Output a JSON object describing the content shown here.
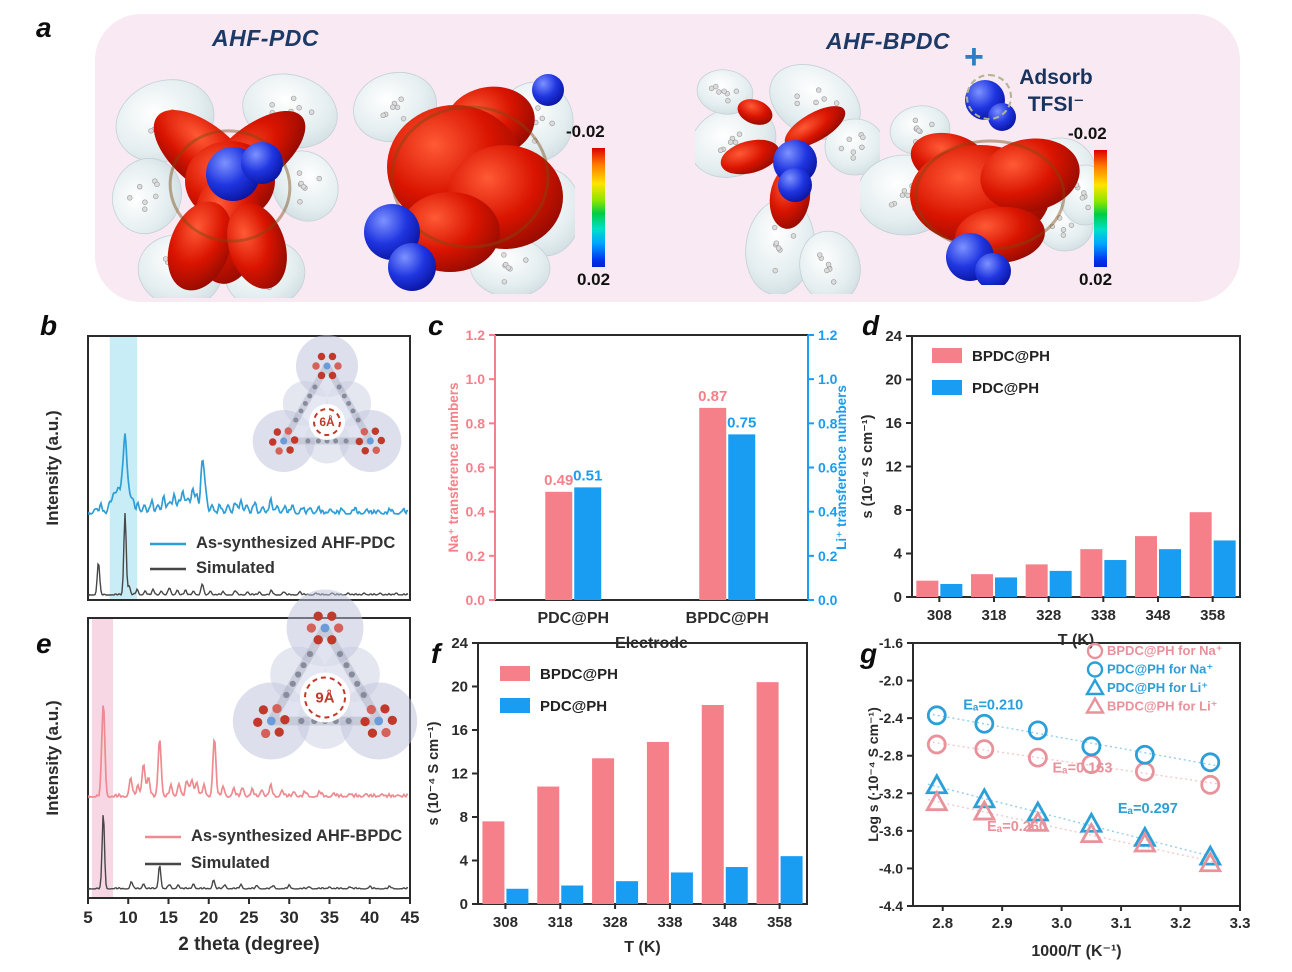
{
  "panel_a": {
    "label": "a",
    "left_title": "AHF-PDC",
    "right_title": "AHF-BPDC",
    "plus_sign": "+",
    "adsorb_word": "Adsorb",
    "tfsi_word": "TFSI⁻",
    "colorbar_top": "-0.02",
    "colorbar_bottom": "0.02"
  },
  "colors": {
    "bar_pink": "#f5808a",
    "bar_blue": "#189df2",
    "scatter_pink": "#e8929c",
    "scatter_blue": "#2b9fd8",
    "xrd_blue": "#2e9fd6",
    "xrd_pink": "#ee8a90",
    "xrd_dark": "#474747",
    "band_cyan": "#c9edf6",
    "band_pink": "#f6d7e3",
    "axis_dark": "#2b2b2b",
    "navy": "#17335e"
  },
  "chart_data": [
    {
      "id": "b",
      "panel_label": "b",
      "type": "line",
      "ylabel": "Intensity (a.u.)",
      "xlabel": "",
      "xlim": [
        5,
        45
      ],
      "band": {
        "range": [
          7.7,
          11.1
        ],
        "colorKey": "band_cyan"
      },
      "inset_label": "6Å",
      "series": [
        {
          "name": "As-synthesized AHF-PDC",
          "colorKey": "xrd_blue",
          "peaks": [
            [
              5.9,
              5
            ],
            [
              6.6,
              7
            ],
            [
              7.7,
              12
            ],
            [
              8.2,
              20
            ],
            [
              8.7,
              24
            ],
            [
              9.2,
              30
            ],
            [
              9.6,
              75
            ],
            [
              10.0,
              26
            ],
            [
              10.5,
              15
            ],
            [
              11.2,
              9
            ],
            [
              12.0,
              9
            ],
            [
              12.9,
              11
            ],
            [
              13.7,
              9
            ],
            [
              14.4,
              17
            ],
            [
              15.1,
              11
            ],
            [
              15.7,
              19
            ],
            [
              16.3,
              13
            ],
            [
              16.8,
              21
            ],
            [
              17.4,
              15
            ],
            [
              18.0,
              25
            ],
            [
              18.5,
              19
            ],
            [
              19.2,
              52
            ],
            [
              19.6,
              22
            ],
            [
              20.4,
              9
            ],
            [
              21.4,
              7
            ],
            [
              22.4,
              9
            ],
            [
              23.3,
              10
            ],
            [
              24.0,
              12
            ],
            [
              24.7,
              9
            ],
            [
              25.7,
              10
            ],
            [
              26.7,
              7
            ],
            [
              27.7,
              12
            ],
            [
              28.5,
              8
            ],
            [
              29.4,
              6
            ],
            [
              30.4,
              8
            ],
            [
              31.6,
              5
            ],
            [
              32.6,
              6
            ],
            [
              33.6,
              5
            ],
            [
              35.1,
              5
            ],
            [
              36.6,
              4
            ],
            [
              38.1,
              4
            ],
            [
              39.6,
              4
            ],
            [
              41.1,
              3
            ],
            [
              42.6,
              3
            ],
            [
              44.1,
              3
            ]
          ]
        },
        {
          "name": "Simulated",
          "colorKey": "xrd_dark",
          "peaks": [
            [
              6.3,
              33
            ],
            [
              9.6,
              82
            ],
            [
              10.1,
              9
            ],
            [
              11.1,
              5
            ],
            [
              12.1,
              4
            ],
            [
              13.1,
              5
            ],
            [
              14.1,
              4
            ],
            [
              15.1,
              7
            ],
            [
              16.1,
              5
            ],
            [
              17.1,
              4
            ],
            [
              18.1,
              4
            ],
            [
              19.2,
              11
            ],
            [
              20.2,
              4
            ],
            [
              21.8,
              3
            ],
            [
              23.3,
              4
            ],
            [
              24.8,
              3
            ],
            [
              26.3,
              3
            ],
            [
              27.8,
              4
            ],
            [
              29.3,
              3
            ],
            [
              31.3,
              3
            ],
            [
              33.3,
              2
            ],
            [
              35.3,
              2
            ],
            [
              37.3,
              2
            ],
            [
              39.3,
              2
            ],
            [
              41.3,
              2
            ],
            [
              43.3,
              2
            ]
          ]
        }
      ]
    },
    {
      "id": "c",
      "panel_label": "c",
      "type": "bar",
      "categories": [
        "PDC@PH",
        "BPDC@PH"
      ],
      "xlabel": "Electrode",
      "ylabel_left": "Na⁺ transference numbers",
      "ylabel_right": "Li⁺ transference numbers",
      "ylim": [
        0,
        1.2
      ],
      "ytick_step": 0.2,
      "series": [
        {
          "name": "Na⁺ transference",
          "colorKey": "bar_pink",
          "values": [
            0.49,
            0.87
          ]
        },
        {
          "name": "Li⁺ transference",
          "colorKey": "bar_blue",
          "values": [
            0.51,
            0.75
          ]
        }
      ]
    },
    {
      "id": "d",
      "panel_label": "d",
      "type": "bar",
      "categories": [
        "308",
        "318",
        "328",
        "338",
        "348",
        "358"
      ],
      "xlabel": "T (K)",
      "ylabel": "s (10⁻⁴ S cm⁻¹)",
      "ylim": [
        0,
        24
      ],
      "ytick_step": 4,
      "series": [
        {
          "name": "BPDC@PH",
          "colorKey": "bar_pink",
          "values": [
            1.5,
            2.1,
            3.0,
            4.4,
            5.6,
            7.8
          ]
        },
        {
          "name": "PDC@PH",
          "colorKey": "bar_blue",
          "values": [
            1.2,
            1.8,
            2.4,
            3.4,
            4.4,
            5.2
          ]
        }
      ]
    },
    {
      "id": "e",
      "panel_label": "e",
      "type": "line",
      "ylabel": "Intensity (a.u.)",
      "xlabel": "2 theta (degree)",
      "xlim": [
        5,
        45
      ],
      "xticks": [
        5,
        10,
        15,
        20,
        25,
        30,
        35,
        40,
        45
      ],
      "band": {
        "range": [
          5.5,
          8.1
        ],
        "colorKey": "band_pink"
      },
      "inset_label": "9Å",
      "series": [
        {
          "name": "As-synthesized AHF-BPDC",
          "colorKey": "xrd_pink",
          "peaks": [
            [
              6.9,
              93
            ],
            [
              10.3,
              18
            ],
            [
              11.2,
              10
            ],
            [
              11.9,
              33
            ],
            [
              12.5,
              18
            ],
            [
              13.9,
              58
            ],
            [
              15.3,
              10
            ],
            [
              16.3,
              13
            ],
            [
              17.3,
              15
            ],
            [
              17.9,
              17
            ],
            [
              18.5,
              14
            ],
            [
              19.4,
              10
            ],
            [
              20.7,
              58
            ],
            [
              21.8,
              9
            ],
            [
              23.1,
              7
            ],
            [
              24.2,
              9
            ],
            [
              25.4,
              6
            ],
            [
              26.6,
              7
            ],
            [
              27.7,
              10
            ],
            [
              29.1,
              6
            ],
            [
              30.6,
              5
            ],
            [
              32.0,
              4
            ],
            [
              33.8,
              4
            ],
            [
              35.5,
              3
            ],
            [
              37.5,
              3
            ],
            [
              39.5,
              3
            ],
            [
              41.5,
              3
            ],
            [
              43.5,
              2
            ]
          ]
        },
        {
          "name": "Simulated",
          "colorKey": "xrd_dark",
          "peaks": [
            [
              6.9,
              76
            ],
            [
              10.4,
              7
            ],
            [
              11.9,
              5
            ],
            [
              13.9,
              24
            ],
            [
              15.1,
              4
            ],
            [
              16.2,
              4
            ],
            [
              18.1,
              5
            ],
            [
              20.6,
              9
            ],
            [
              22.0,
              4
            ],
            [
              24.0,
              4
            ],
            [
              26.0,
              3
            ],
            [
              28.0,
              3
            ],
            [
              30.0,
              3
            ],
            [
              32.5,
              2
            ],
            [
              35.0,
              2
            ],
            [
              37.5,
              2
            ],
            [
              40.0,
              2
            ],
            [
              42.5,
              2
            ]
          ]
        }
      ]
    },
    {
      "id": "f",
      "panel_label": "f",
      "type": "bar",
      "categories": [
        "308",
        "318",
        "328",
        "338",
        "348",
        "358"
      ],
      "xlabel": "T (K)",
      "ylabel": "s (10⁻⁴ S cm⁻¹)",
      "ylim": [
        0,
        24
      ],
      "ytick_step": 4,
      "series": [
        {
          "name": "BPDC@PH",
          "colorKey": "bar_pink",
          "values": [
            7.6,
            10.8,
            13.4,
            14.9,
            18.3,
            20.4
          ]
        },
        {
          "name": "PDC@PH",
          "colorKey": "bar_blue",
          "values": [
            1.4,
            1.7,
            2.1,
            2.9,
            3.4,
            4.4
          ]
        }
      ]
    },
    {
      "id": "g",
      "panel_label": "g",
      "type": "scatter",
      "xlabel": "1000/T (K⁻¹)",
      "ylabel": "Log s (·10⁻⁴ S cm⁻¹)",
      "xlim": [
        2.75,
        3.3
      ],
      "ylim": [
        -4.4,
        -1.6
      ],
      "xticks": [
        2.8,
        2.9,
        3.0,
        3.1,
        3.2,
        3.3
      ],
      "ytick_step": 0.4,
      "x": [
        2.79,
        2.87,
        2.96,
        3.05,
        3.14,
        3.25
      ],
      "series": [
        {
          "name": "BPDC@PH for Na⁺",
          "marker": "circle",
          "colorKey": "scatter_pink",
          "values": [
            -2.68,
            -2.73,
            -2.82,
            -2.89,
            -2.97,
            -3.11
          ]
        },
        {
          "name": "PDC@PH for Na⁺",
          "marker": "circle",
          "colorKey": "scatter_blue",
          "values": [
            -2.37,
            -2.46,
            -2.53,
            -2.7,
            -2.79,
            -2.87
          ]
        },
        {
          "name": "PDC@PH for Li⁺",
          "marker": "triangle",
          "colorKey": "scatter_blue",
          "values": [
            -3.12,
            -3.27,
            -3.41,
            -3.53,
            -3.68,
            -3.88
          ]
        },
        {
          "name": "BPDC@PH for Li⁺",
          "marker": "triangle",
          "colorKey": "scatter_pink",
          "values": [
            -3.3,
            -3.4,
            -3.52,
            -3.64,
            -3.74,
            -3.95
          ]
        }
      ],
      "annotations": [
        {
          "text": "Eₐ=0.210",
          "x": 2.885,
          "y": -2.31,
          "colorKey": "scatter_blue"
        },
        {
          "text": "Eₐ=0.163",
          "x": 3.035,
          "y": -2.98,
          "colorKey": "scatter_pink"
        },
        {
          "text": "Eₐ=0.260",
          "x": 2.925,
          "y": -3.6,
          "colorKey": "scatter_pink"
        },
        {
          "text": "Eₐ=0.297",
          "x": 3.145,
          "y": -3.41,
          "colorKey": "scatter_blue"
        }
      ]
    }
  ]
}
